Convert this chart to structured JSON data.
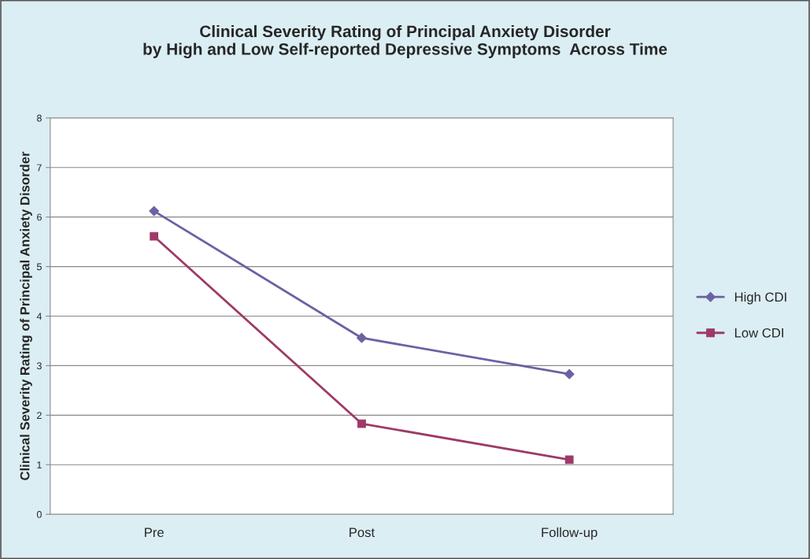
{
  "chart_data": {
    "type": "line",
    "title": "Clinical Severity Rating of Principal Anxiety Disorder\nby High and Low Self-reported Depressive Symptoms  Across Time",
    "ylabel": "Clinical Severity Rating of Principal Anxiety Disorder",
    "categories": [
      "Pre",
      "Post",
      "Follow-up"
    ],
    "series": [
      {
        "name": "High CDI",
        "color": "#6a62a3",
        "marker": "diamond",
        "values": [
          6.12,
          3.56,
          2.83
        ]
      },
      {
        "name": "Low CDI",
        "color": "#9e3a68",
        "marker": "square",
        "values": [
          5.61,
          1.83,
          1.1
        ]
      }
    ],
    "ylim": [
      0,
      8
    ],
    "yticks": [
      0,
      1,
      2,
      3,
      4,
      5,
      6,
      7,
      8
    ],
    "grid": "y",
    "legend": "right",
    "line_style": "solid"
  }
}
